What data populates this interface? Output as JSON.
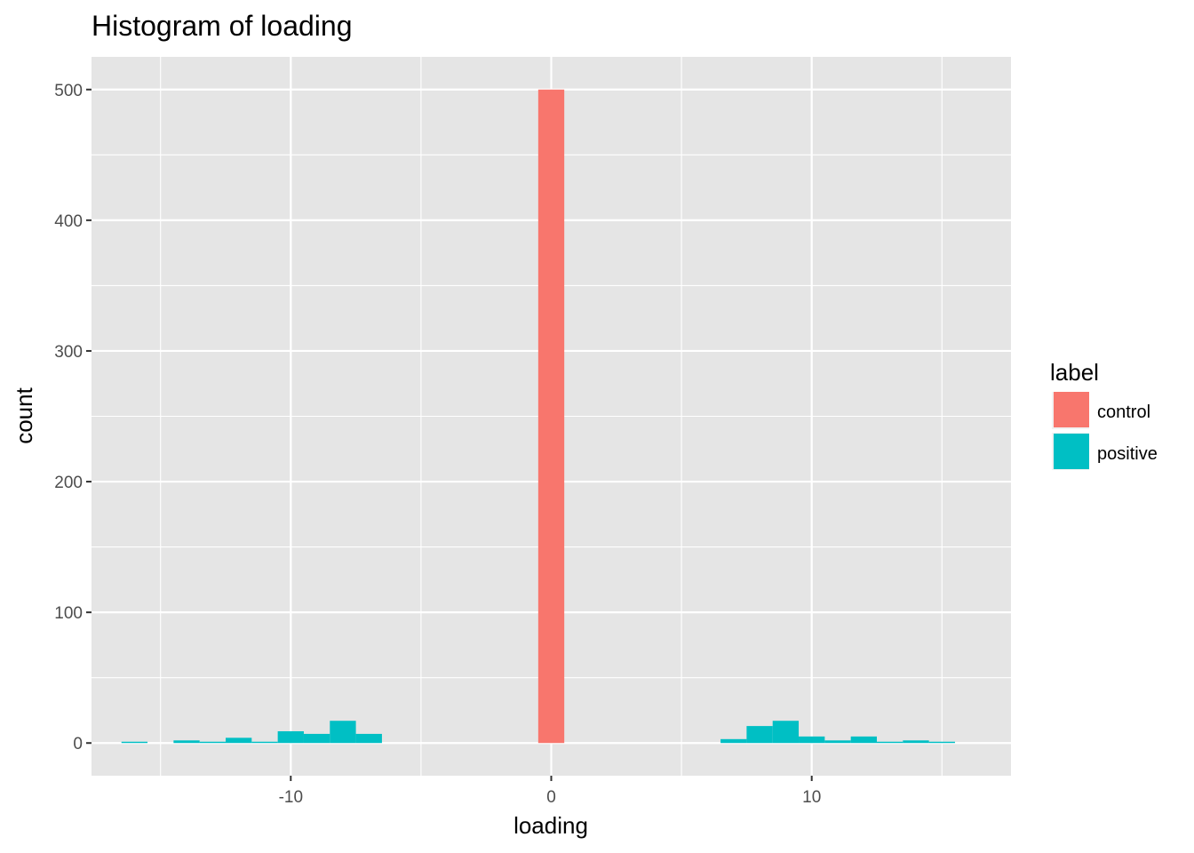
{
  "chart_data": {
    "type": "bar",
    "title": "Histogram of loading",
    "xlabel": "loading",
    "ylabel": "count",
    "xlim": [
      -17.65,
      17.65
    ],
    "ylim": [
      -25,
      525
    ],
    "x_ticks": [
      -10,
      0,
      10
    ],
    "x_tick_labels": [
      "-10",
      "0",
      "10"
    ],
    "y_ticks": [
      0,
      100,
      200,
      300,
      400,
      500
    ],
    "y_tick_labels": [
      "0",
      "100",
      "200",
      "300",
      "400",
      "500"
    ],
    "grid": true,
    "legend": {
      "title": "label",
      "position": "right",
      "entries": [
        {
          "name": "control",
          "color": "#F8766D"
        },
        {
          "name": "positive",
          "color": "#00BFC4"
        }
      ]
    },
    "colors": {
      "panel_background": "#E5E5E5",
      "grid_line": "#FFFFFF",
      "control": "#F8766D",
      "positive": "#00BFC4"
    },
    "series": [
      {
        "name": "control",
        "bins": [
          {
            "x0": -0.5,
            "x1": 0.5,
            "count": 500
          }
        ]
      },
      {
        "name": "positive",
        "bins": [
          {
            "x0": -16.5,
            "x1": -15.5,
            "count": 1
          },
          {
            "x0": -14.5,
            "x1": -13.5,
            "count": 2
          },
          {
            "x0": -13.5,
            "x1": -12.5,
            "count": 1
          },
          {
            "x0": -12.5,
            "x1": -11.5,
            "count": 4
          },
          {
            "x0": -11.5,
            "x1": -10.5,
            "count": 1
          },
          {
            "x0": -10.5,
            "x1": -9.5,
            "count": 9
          },
          {
            "x0": -9.5,
            "x1": -8.5,
            "count": 7
          },
          {
            "x0": -8.5,
            "x1": -7.5,
            "count": 17
          },
          {
            "x0": -7.5,
            "x1": -6.5,
            "count": 7
          },
          {
            "x0": 6.5,
            "x1": 7.5,
            "count": 3
          },
          {
            "x0": 7.5,
            "x1": 8.5,
            "count": 13
          },
          {
            "x0": 8.5,
            "x1": 9.5,
            "count": 17
          },
          {
            "x0": 9.5,
            "x1": 10.5,
            "count": 5
          },
          {
            "x0": 10.5,
            "x1": 11.5,
            "count": 2
          },
          {
            "x0": 11.5,
            "x1": 12.5,
            "count": 5
          },
          {
            "x0": 12.5,
            "x1": 13.5,
            "count": 1
          },
          {
            "x0": 13.5,
            "x1": 14.5,
            "count": 2
          },
          {
            "x0": 14.5,
            "x1": 15.5,
            "count": 1
          }
        ]
      }
    ]
  }
}
